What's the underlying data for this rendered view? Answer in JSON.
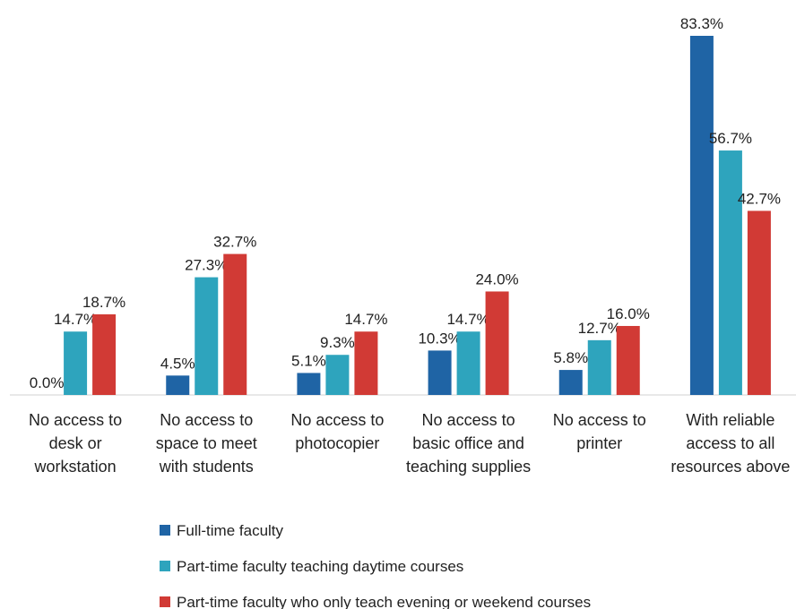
{
  "chart_data": {
    "type": "bar",
    "categories": [
      "No access to desk or workstation",
      "No access to space to meet with students",
      "No access to photocopier",
      "No access to basic office and teaching supplies",
      "No access to printer",
      "With reliable access to all resources above"
    ],
    "series": [
      {
        "name": "Full-time faculty",
        "color": "#1f64a5",
        "values": [
          0.0,
          4.5,
          5.1,
          10.3,
          5.8,
          83.3
        ],
        "value_labels": [
          "0.0%",
          "4.5%",
          "5.1%",
          "10.3%",
          "5.8%",
          "83.3%"
        ]
      },
      {
        "name": "Part-time faculty teaching daytime courses",
        "color": "#2ea4bd",
        "values": [
          14.7,
          27.3,
          9.3,
          14.7,
          12.7,
          56.7
        ],
        "value_labels": [
          "14.7%",
          "27.3%",
          "9.3%",
          "14.7%",
          "12.7%",
          "56.7%"
        ]
      },
      {
        "name": "Part-time faculty who only teach evening or weekend courses",
        "color": "#d13a35",
        "values": [
          18.7,
          32.7,
          14.7,
          24.0,
          16.0,
          42.7
        ],
        "value_labels": [
          "18.7%",
          "32.7%",
          "14.7%",
          "24.0%",
          "16.0%",
          "42.7%"
        ]
      }
    ],
    "legend": "bottom"
  }
}
